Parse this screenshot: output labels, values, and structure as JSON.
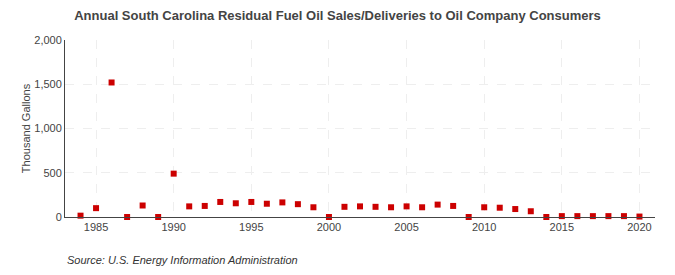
{
  "chart_data": {
    "type": "scatter",
    "title": "Annual South Carolina Residual Fuel Oil Sales/Deliveries to Oil Company Consumers",
    "ylabel": "Thousand Gallons",
    "annotations": [
      "Source: U.S. Energy Information Administration"
    ],
    "x": [
      1984,
      1985,
      1986,
      1987,
      1988,
      1989,
      1990,
      1991,
      1992,
      1993,
      1994,
      1995,
      1996,
      1997,
      1998,
      1999,
      2000,
      2001,
      2002,
      2003,
      2004,
      2005,
      2006,
      2007,
      2008,
      2009,
      2010,
      2011,
      2012,
      2013,
      2014,
      2015,
      2016,
      2017,
      2018,
      2019,
      2020
    ],
    "values": [
      15,
      100,
      1520,
      0,
      130,
      0,
      490,
      120,
      125,
      170,
      155,
      170,
      150,
      165,
      145,
      110,
      0,
      115,
      120,
      115,
      110,
      120,
      110,
      140,
      125,
      0,
      110,
      105,
      90,
      65,
      0,
      10,
      10,
      10,
      10,
      10,
      5
    ],
    "color": "#cc0000",
    "marker": "square",
    "xlim": [
      1983,
      2021
    ],
    "xticks": [
      1985,
      1990,
      1995,
      2000,
      2005,
      2010,
      2015,
      2020
    ],
    "ylim": [
      0,
      2000
    ],
    "yticks": [
      0,
      500,
      {
        "value": 1000,
        "label": "1,000"
      },
      {
        "value": 1500,
        "label": "1,500"
      },
      {
        "value": 2000,
        "label": "2,000"
      }
    ],
    "grid": true
  }
}
